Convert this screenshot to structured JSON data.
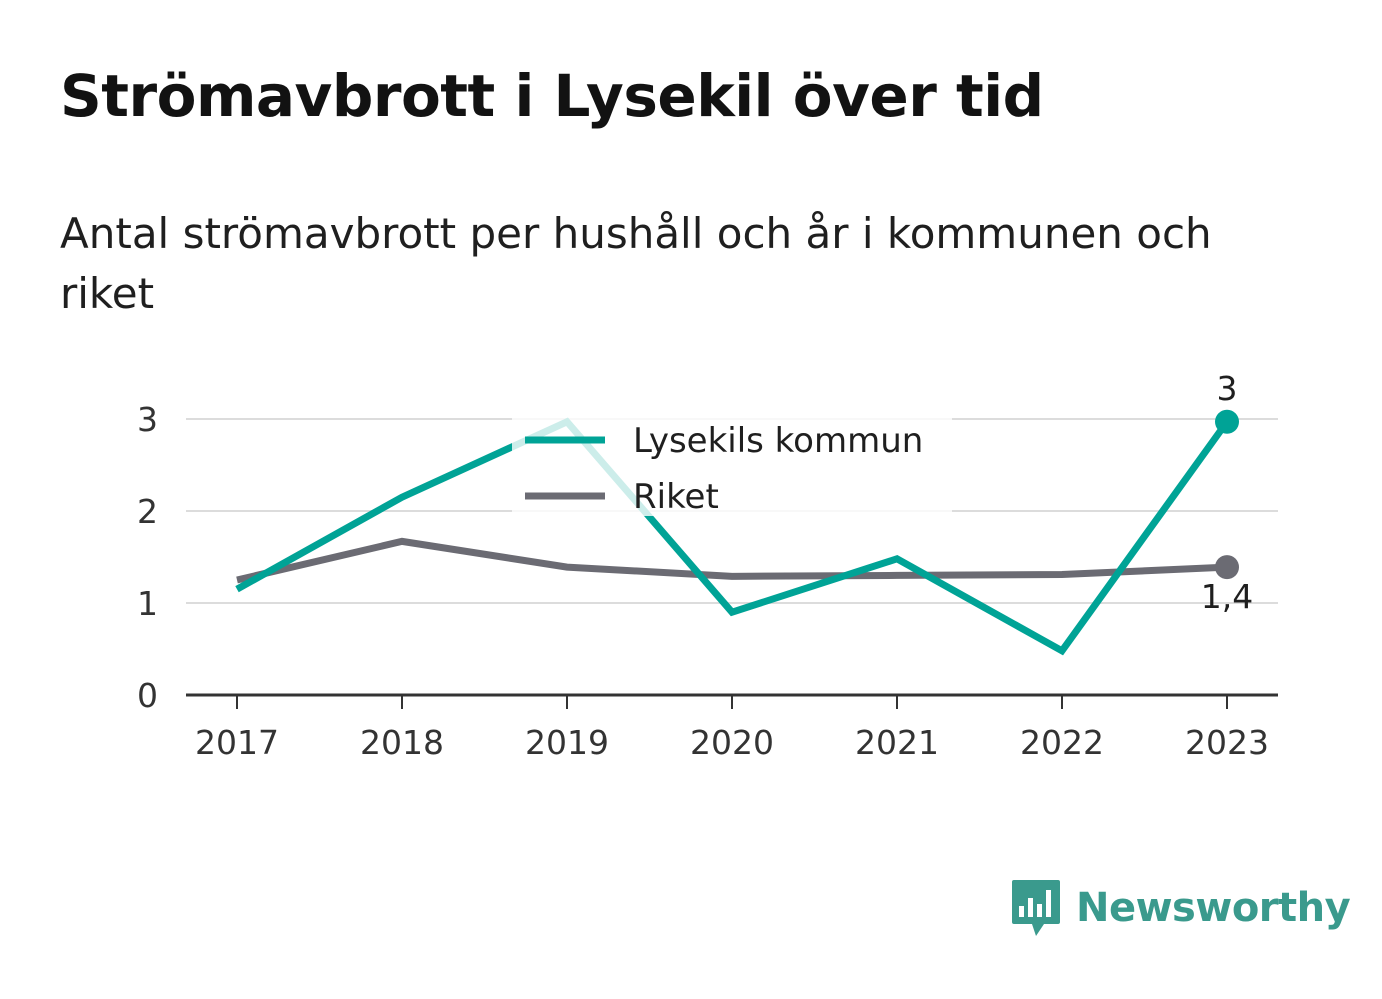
{
  "title": "Strömavbrott i Lysekil över tid",
  "subtitle": "Antal strömavbrott per hushåll och år i kommunen och riket",
  "chart_data": {
    "type": "line",
    "x": [
      "2017",
      "2018",
      "2019",
      "2020",
      "2021",
      "2022",
      "2023"
    ],
    "ylim": [
      0,
      3
    ],
    "yticks": [
      "0",
      "1",
      "2",
      "3"
    ],
    "grid": true,
    "legend_position": "top-center",
    "series": [
      {
        "name": "Lysekils kommun",
        "color": "#00a396",
        "values": [
          1.15,
          2.15,
          2.97,
          0.9,
          1.48,
          0.48,
          2.97
        ],
        "end_label": "3"
      },
      {
        "name": "Riket",
        "color": "#6b6b73",
        "values": [
          1.25,
          1.67,
          1.39,
          1.29,
          1.3,
          1.31,
          1.39
        ],
        "end_label": "1,4"
      }
    ]
  },
  "brand": {
    "name": "Newsworthy",
    "icon": "newsworthy-logo-icon",
    "color": "#3a9a8d"
  }
}
